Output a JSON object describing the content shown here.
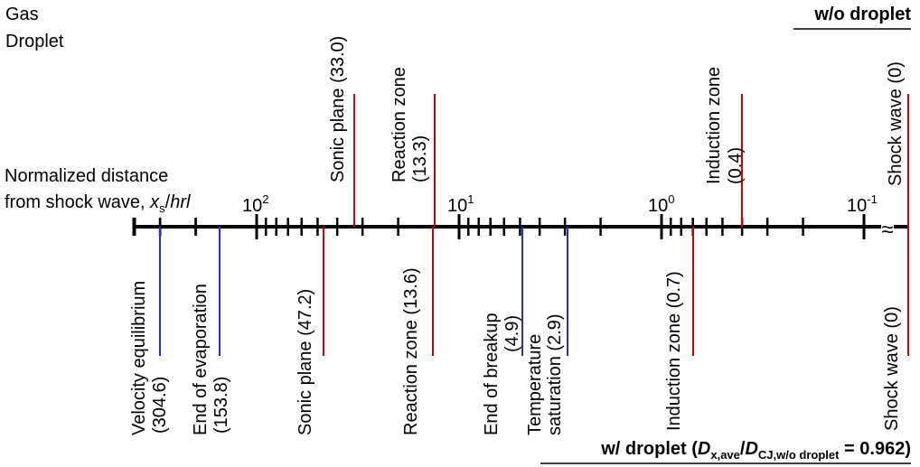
{
  "colors": {
    "gas": "#cc0000",
    "droplet": "#1f2fd6",
    "axis": "#000000"
  },
  "legend": {
    "gas": "Gas",
    "droplet": "Droplet"
  },
  "header_top": "w/o droplet",
  "header_bottom": {
    "prefix": "w/ droplet (",
    "d1": "D",
    "d1_sub": "x,ave",
    "slash": "/",
    "d2": "D",
    "d2_sub": "CJ,w/o droplet",
    "suffix": " = 0.962)"
  },
  "axis": {
    "label_line1": "Normalized distance",
    "label_line2_prefix": "from shock wave, ",
    "label_var": "x",
    "label_var_sub": "s",
    "label_slash": "/",
    "label_hrl": "hrl",
    "scale": "log",
    "direction": "decreasing to the right",
    "decades": [
      {
        "base": "10",
        "exp": "2"
      },
      {
        "base": "10",
        "exp": "1"
      },
      {
        "base": "10",
        "exp": "0"
      },
      {
        "base": "10",
        "exp": "-1"
      }
    ],
    "break_mark": "≈"
  },
  "top_markers": [
    {
      "label": "Sonic plane",
      "value": "(33.0)",
      "phase": "gas"
    },
    {
      "label": "Reaction zone",
      "value": "(13.3)",
      "phase": "gas"
    },
    {
      "label": "Induction zone",
      "value": "(0.4)",
      "phase": "gas"
    },
    {
      "label": "Shock wave",
      "value": "(0)",
      "phase": "gas"
    }
  ],
  "bottom_markers": [
    {
      "label": "Velocity equilibrium",
      "value": "(304.6)",
      "phase": "droplet"
    },
    {
      "label": "End of evaporation",
      "value": "(153.8)",
      "phase": "droplet"
    },
    {
      "label": "Sonic plane",
      "value": "(47.2)",
      "phase": "gas"
    },
    {
      "label": "Reaction zone",
      "value": "(13.6)",
      "phase": "gas"
    },
    {
      "label": "End of breakup",
      "value": "(4.9)",
      "phase": "droplet"
    },
    {
      "label": "Temperature",
      "label2": "saturation",
      "value": "(2.9)",
      "phase": "droplet"
    },
    {
      "label": "Induction zone",
      "value": "(0.7)",
      "phase": "gas"
    },
    {
      "label": "Shock wave",
      "value": "(0)",
      "phase": "gas"
    }
  ]
}
